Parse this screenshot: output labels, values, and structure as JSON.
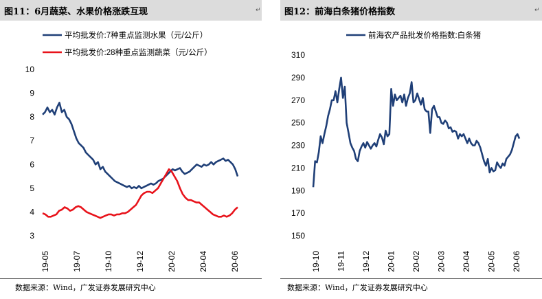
{
  "left_panel": {
    "header": "图11：6月蔬菜、水果价格涨跌互现",
    "source": "数据来源：Wind，广发证券发展研究中心"
  },
  "right_panel": {
    "header": "图12：前海白条猪价格指数",
    "source": "数据来源：Wind，广发证券发展研究中心"
  },
  "chart_data": [
    {
      "type": "line",
      "ylim": [
        3,
        10
      ],
      "yticks": [
        "3",
        "4",
        "5",
        "6",
        "7",
        "8",
        "9",
        "10"
      ],
      "xticks": [
        "19-05",
        "19-07",
        "19-10",
        "19-12",
        "20-02",
        "20-04",
        "20-06"
      ],
      "legend_position": "top-left",
      "series": [
        {
          "name": "平均批发价:7种重点监测水果（元/公斤）",
          "color": "#1f3f77",
          "values": [
            8.1,
            8.2,
            8.4,
            8.2,
            8.3,
            8.1,
            8.4,
            8.6,
            8.2,
            8.3,
            8.0,
            7.9,
            7.7,
            7.4,
            7.1,
            6.9,
            6.8,
            6.7,
            6.5,
            6.4,
            6.3,
            6.2,
            6.0,
            6.1,
            5.8,
            5.9,
            5.7,
            5.6,
            5.5,
            5.4,
            5.3,
            5.25,
            5.2,
            5.15,
            5.1,
            5.05,
            5.1,
            5.0,
            5.05,
            5.0,
            5.1,
            5.0,
            5.05,
            5.1,
            5.15,
            5.2,
            5.15,
            5.2,
            5.3,
            5.35,
            5.4,
            5.5,
            5.6,
            5.7,
            5.8,
            5.75,
            5.8,
            5.85,
            5.7,
            5.6,
            5.65,
            5.7,
            5.8,
            5.9,
            6.0,
            5.95,
            5.9,
            6.0,
            5.95,
            6.0,
            6.1,
            6.0,
            6.1,
            6.15,
            6.2,
            6.25,
            6.15,
            6.2,
            6.1,
            6.0,
            5.8,
            5.5
          ]
        },
        {
          "name": "平均批发价:28种重点监测蔬菜（元/公斤）",
          "color": "#e8131b",
          "values": [
            3.95,
            3.9,
            3.8,
            3.8,
            3.85,
            3.9,
            4.05,
            4.1,
            4.2,
            4.15,
            4.05,
            4.1,
            4.2,
            4.25,
            4.2,
            4.1,
            4.0,
            3.95,
            3.9,
            3.85,
            3.8,
            3.75,
            3.8,
            3.85,
            3.9,
            3.9,
            3.85,
            3.9,
            3.9,
            3.95,
            3.95,
            4.0,
            4.1,
            4.2,
            4.3,
            4.5,
            4.7,
            4.8,
            4.85,
            4.85,
            4.8,
            4.9,
            5.0,
            5.2,
            5.4,
            5.6,
            5.8,
            5.7,
            5.5,
            5.3,
            5.0,
            4.75,
            4.6,
            4.5,
            4.5,
            4.45,
            4.4,
            4.4,
            4.3,
            4.2,
            4.1,
            4.0,
            3.9,
            3.85,
            3.8,
            3.8,
            3.85,
            3.8,
            3.85,
            3.95,
            4.1,
            4.2
          ]
        }
      ]
    },
    {
      "type": "line",
      "ylim": [
        150,
        310
      ],
      "yticks": [
        "150",
        "170",
        "190",
        "210",
        "230",
        "250",
        "270",
        "290",
        "310"
      ],
      "xticks": [
        "19-10",
        "19-11",
        "19-12",
        "20-01",
        "20-02",
        "20-03",
        "20-04",
        "20-05",
        "20-06"
      ],
      "legend_position": "top-left",
      "series": [
        {
          "name": "前海农产品批发价格指数:白条猪",
          "color": "#1f3f77",
          "values": [
            193,
            216,
            215,
            224,
            238,
            232,
            240,
            247,
            256,
            262,
            270,
            270,
            278,
            268,
            280,
            290,
            272,
            282,
            250,
            241,
            232,
            228,
            225,
            218,
            216,
            225,
            229,
            232,
            228,
            233,
            230,
            227,
            230,
            232,
            229,
            235,
            240,
            237,
            231,
            243,
            238,
            240,
            280,
            265,
            275,
            270,
            272,
            274,
            268,
            275,
            265,
            272,
            276,
            286,
            268,
            270,
            276,
            271,
            266,
            272,
            262,
            260,
            260,
            241,
            262,
            265,
            260,
            255,
            255,
            250,
            249,
            252,
            250,
            245,
            246,
            242,
            243,
            242,
            236,
            240,
            238,
            240,
            236,
            232,
            236,
            232,
            230,
            230,
            234,
            232,
            228,
            222,
            216,
            212,
            218,
            206,
            210,
            207,
            208,
            215,
            212,
            210,
            214,
            212,
            218,
            220,
            222,
            226,
            232,
            238,
            240,
            236
          ]
        }
      ]
    }
  ]
}
